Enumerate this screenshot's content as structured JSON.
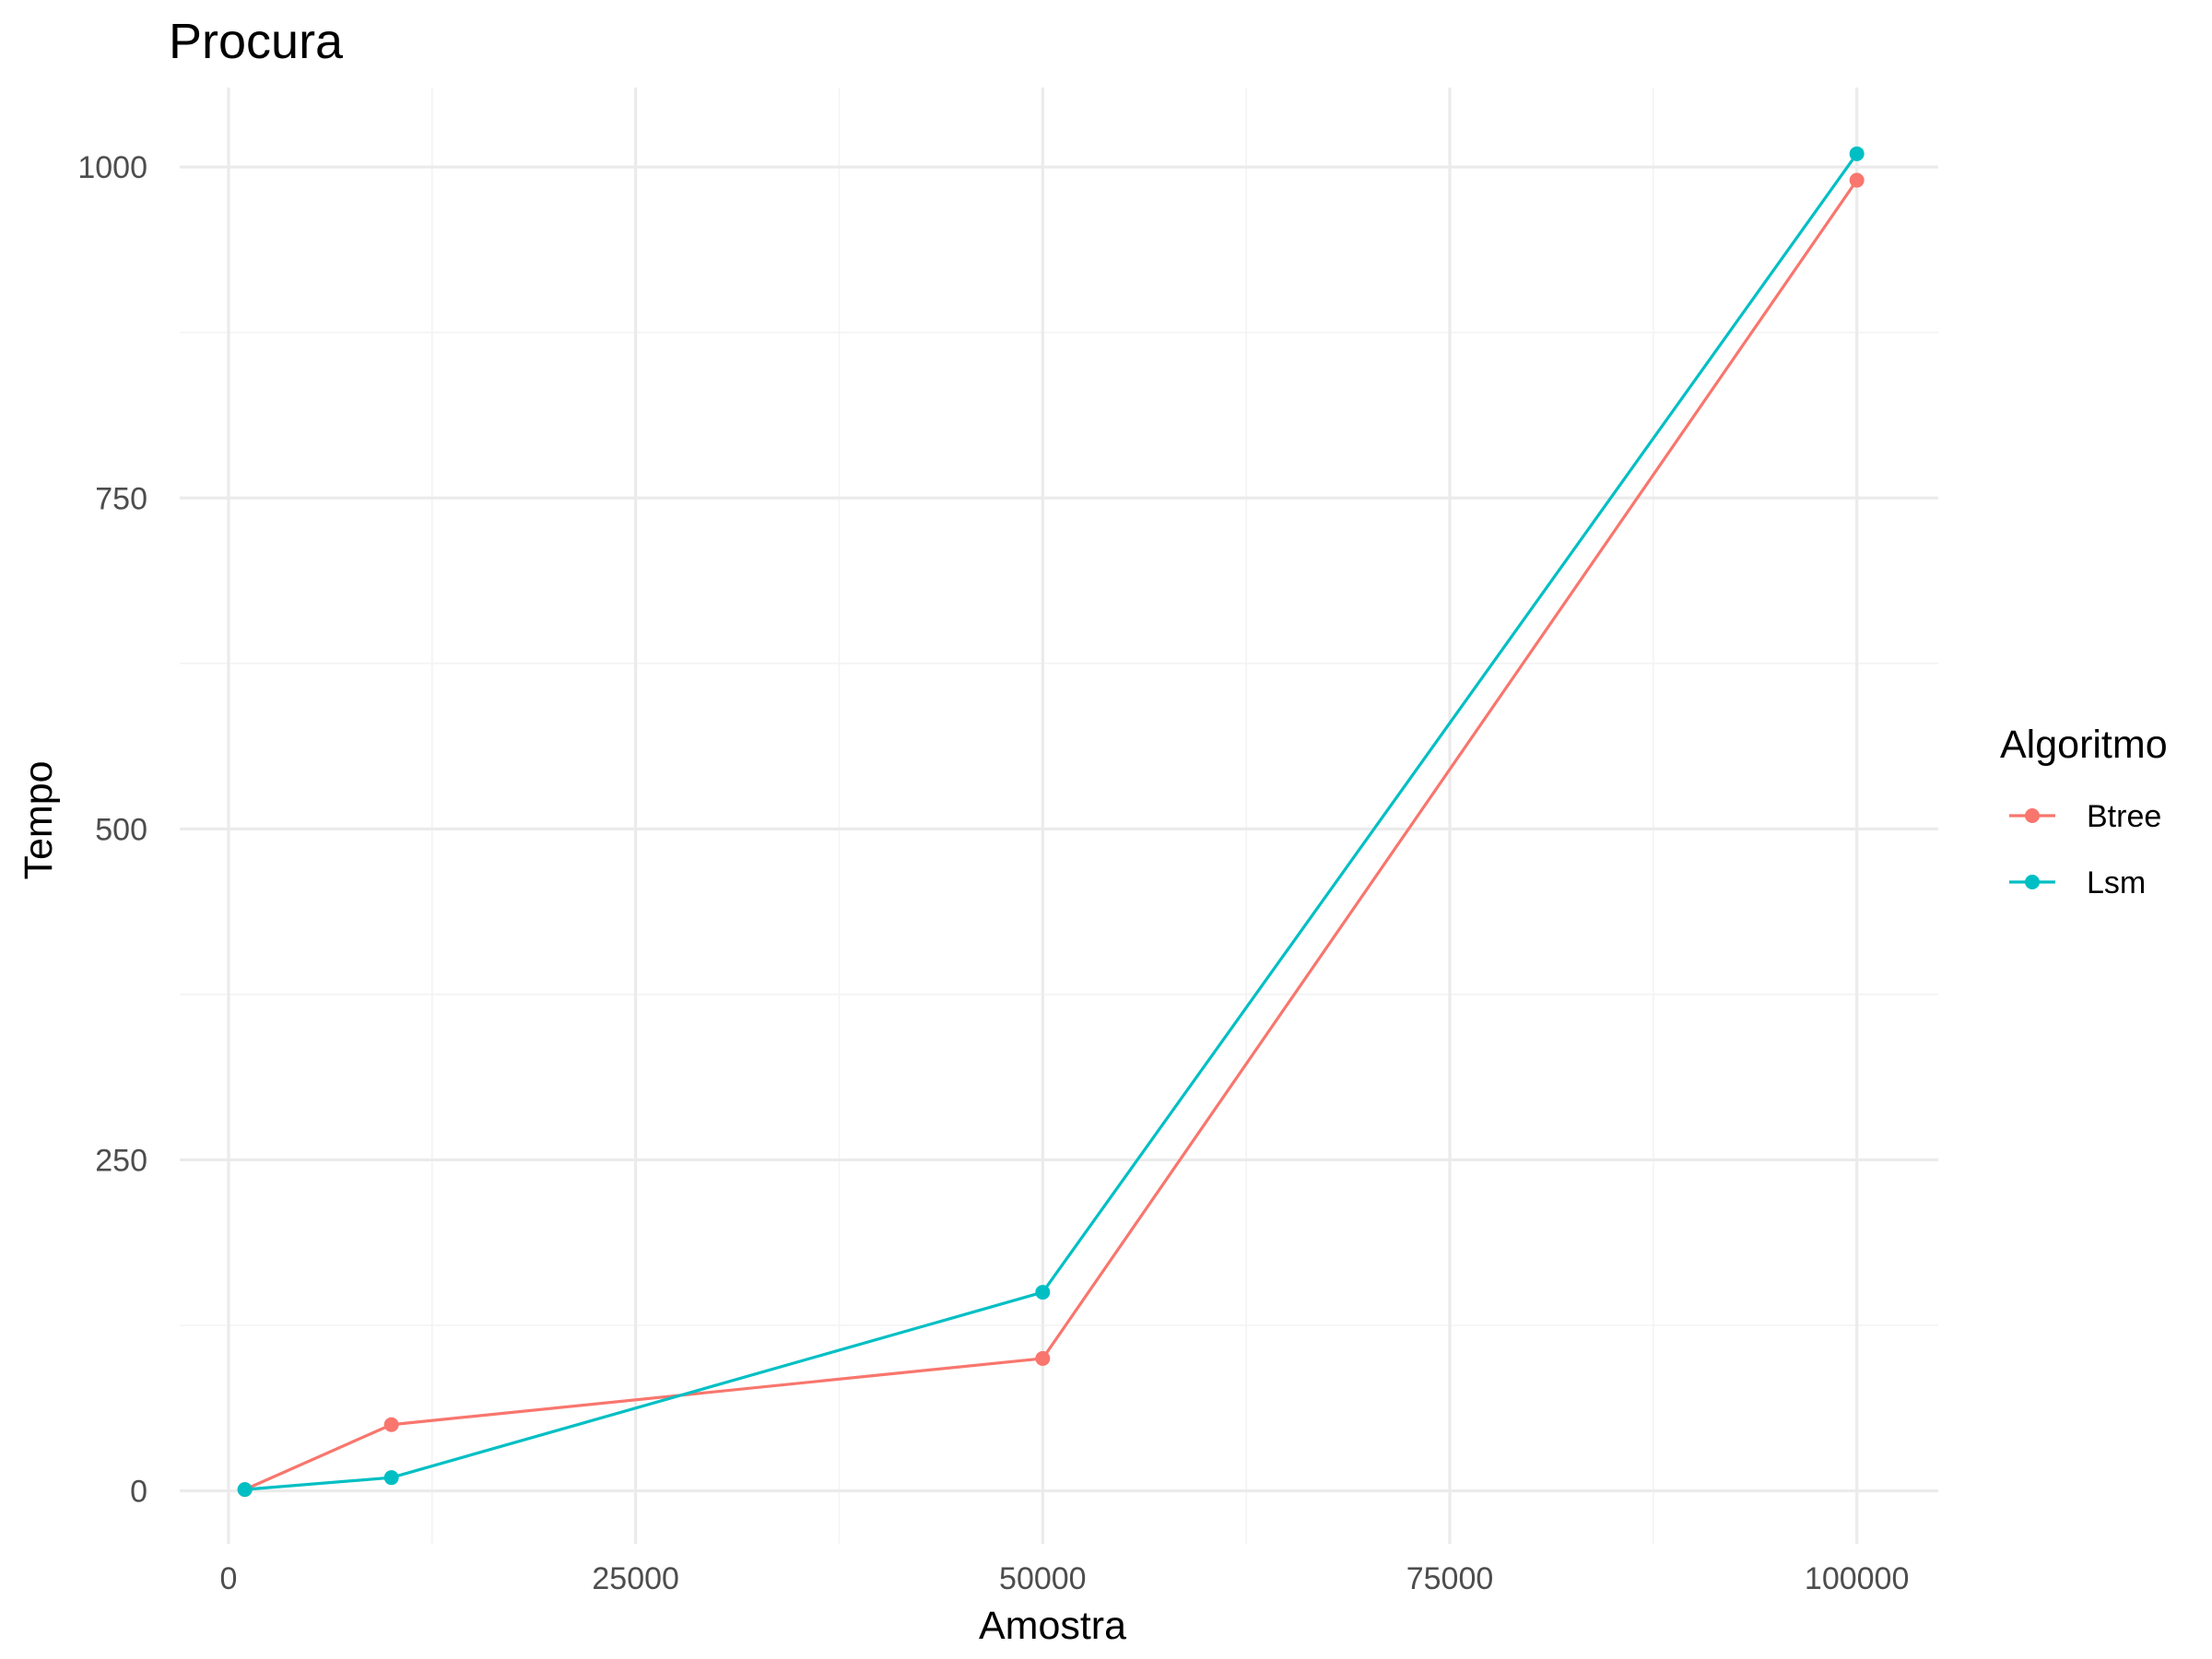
{
  "chart_data": {
    "type": "line",
    "title": "Procura",
    "xlabel": "Amostra",
    "ylabel": "Tempo",
    "xlim": [
      -3000,
      105000
    ],
    "ylim": [
      -40,
      1060
    ],
    "x_ticks": [
      0,
      25000,
      50000,
      75000,
      100000
    ],
    "x_tick_labels": [
      "0",
      "25000",
      "50000",
      "75000",
      "100000"
    ],
    "x_minor": [
      12500,
      37500,
      62500,
      87500
    ],
    "y_ticks": [
      0,
      250,
      500,
      750,
      1000
    ],
    "y_tick_labels": [
      "0",
      "250",
      "500",
      "750",
      "1000"
    ],
    "y_minor": [
      125,
      375,
      625,
      875
    ],
    "grid": true,
    "legend": {
      "title": "Algoritmo",
      "position": "right"
    },
    "series": [
      {
        "name": "Btree",
        "color": "#F8766D",
        "x": [
          1000,
          10000,
          50000,
          100000
        ],
        "y": [
          1,
          50,
          100,
          990
        ]
      },
      {
        "name": "Lsm",
        "color": "#00BFC4",
        "x": [
          1000,
          10000,
          50000,
          100000
        ],
        "y": [
          1,
          10,
          150,
          1010
        ]
      }
    ]
  }
}
